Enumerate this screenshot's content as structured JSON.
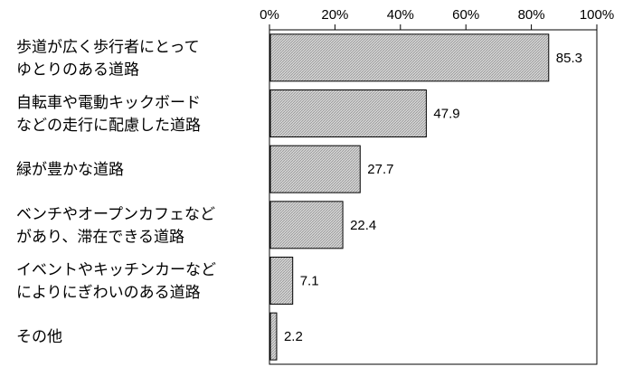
{
  "chart_data": {
    "type": "bar",
    "orientation": "horizontal",
    "categories": [
      [
        "歩道が広く歩行者にとって",
        "ゆとりのある道路"
      ],
      [
        "自転車や電動キックボード",
        "などの走行に配慮した道路"
      ],
      [
        "緑が豊かな道路"
      ],
      [
        "ベンチやオープンカフェなど",
        "があり、滞在できる道路"
      ],
      [
        "イベントやキッチンカーなど",
        "によりにぎわいのある道路"
      ],
      [
        "その他"
      ]
    ],
    "values": [
      85.3,
      47.9,
      27.7,
      22.4,
      7.1,
      2.2
    ],
    "value_labels": [
      "85.3",
      "47.9",
      "27.7",
      "22.4",
      "7.1",
      "2.2"
    ],
    "xlim": [
      0,
      100
    ],
    "x_ticks": [
      0,
      20,
      40,
      60,
      80,
      100
    ],
    "x_tick_labels": [
      "0%",
      "20%",
      "40%",
      "60%",
      "80%",
      "100%"
    ],
    "tick_position": "top",
    "grid": false,
    "legend": "none",
    "colors": {
      "bar_fill": "#cfcfcf",
      "bar_hatch": "#8c8c8c",
      "bar_stroke": "#000000",
      "axis": "#000000"
    }
  }
}
